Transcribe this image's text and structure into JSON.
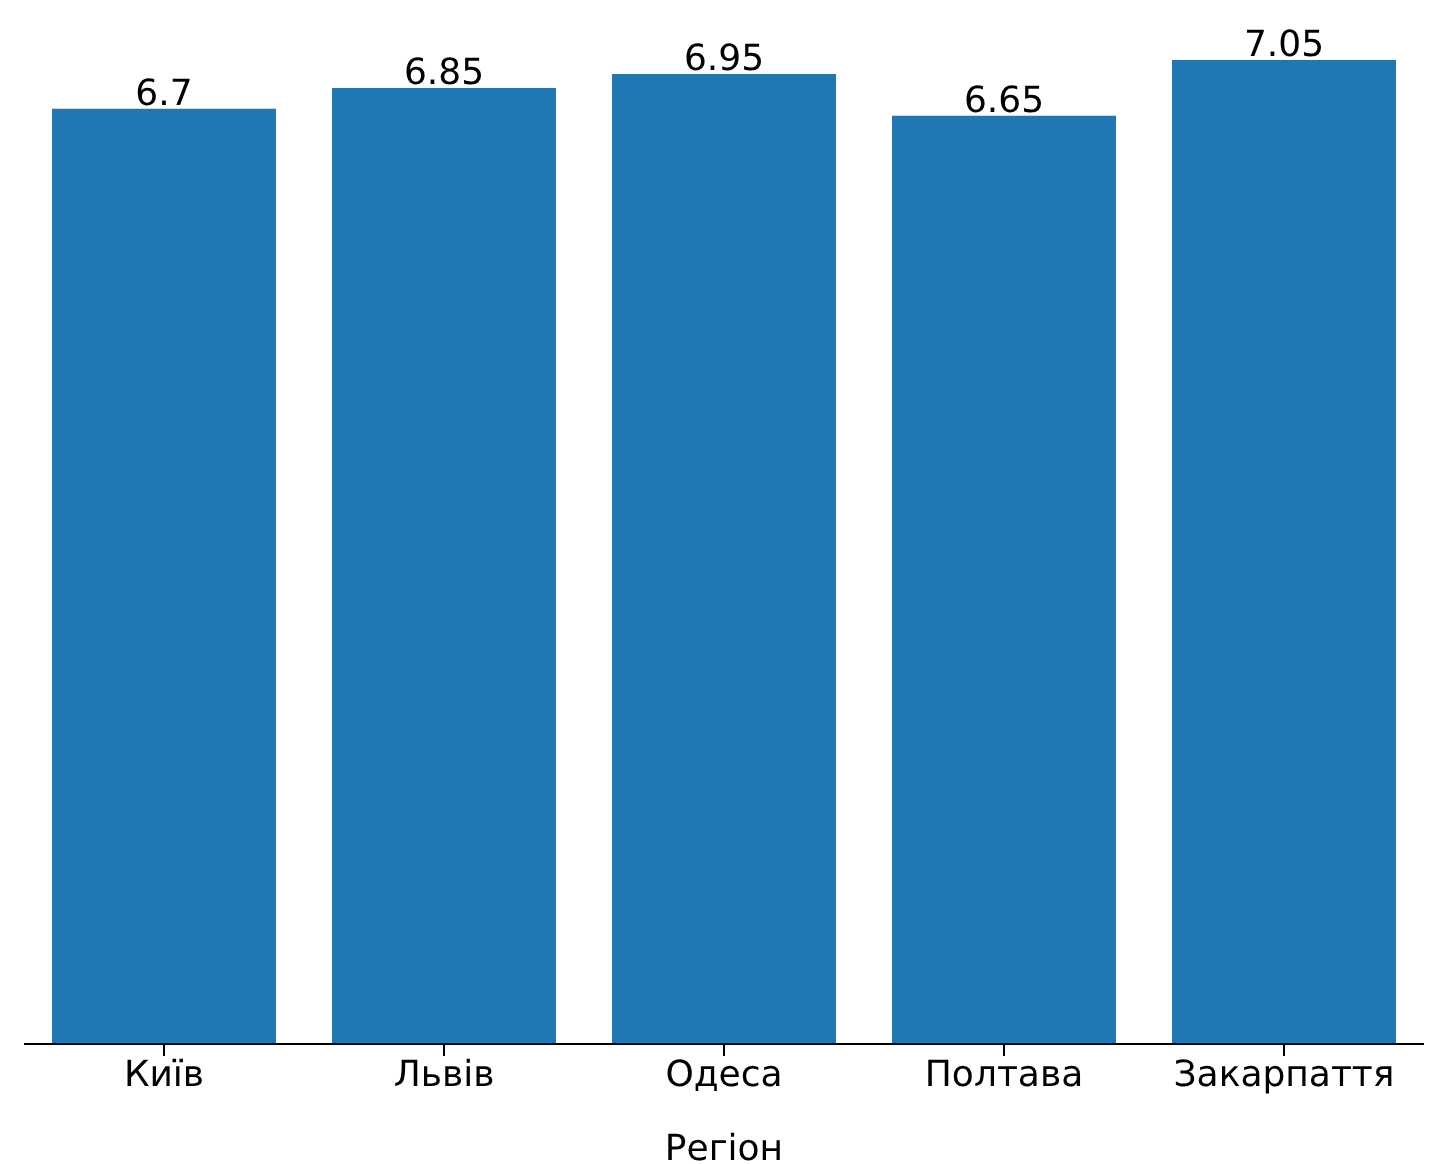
{
  "chart_data": {
    "type": "bar",
    "xlabel": "Регіон",
    "categories": [
      "Київ",
      "Львів",
      "Одеса",
      "Полтава",
      "Закарпаття"
    ],
    "values": [
      6.7,
      6.85,
      6.95,
      6.65,
      7.05
    ],
    "color": "#1f77b4",
    "data_labels": true,
    "grid": false,
    "legend": false
  }
}
